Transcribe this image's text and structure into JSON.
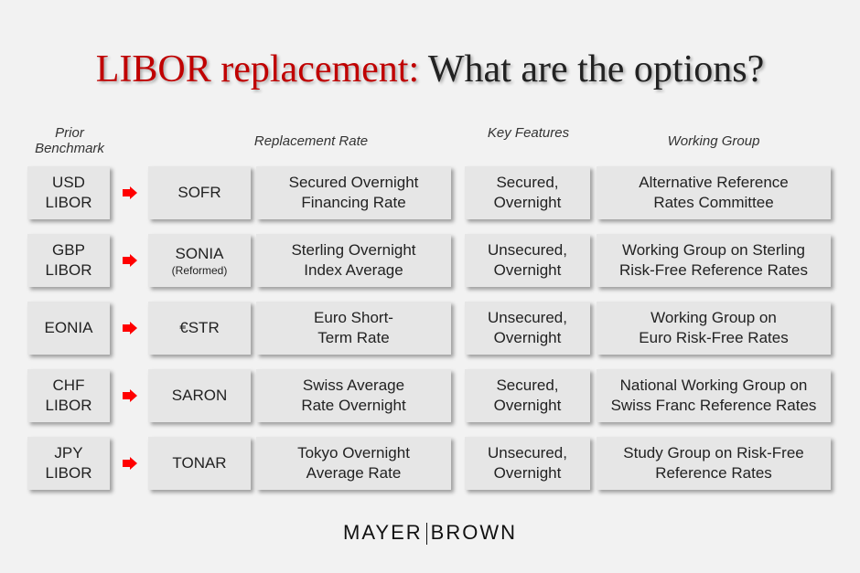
{
  "title": {
    "part1": "LIBOR replacement:",
    "part2": " What are the options?"
  },
  "headers": {
    "prior": "Prior Benchmark",
    "replacement": "Replacement Rate",
    "features": "Key Features",
    "group": "Working Group"
  },
  "rows": [
    {
      "prior": [
        "USD",
        "LIBOR"
      ],
      "code": "SOFR",
      "code_note": "",
      "name": [
        "Secured Overnight",
        "Financing Rate"
      ],
      "features": [
        "Secured,",
        "Overnight"
      ],
      "group": [
        "Alternative Reference",
        "Rates Committee"
      ]
    },
    {
      "prior": [
        "GBP",
        "LIBOR"
      ],
      "code": "SONIA",
      "code_note": "(Reformed)",
      "name": [
        "Sterling Overnight",
        "Index Average"
      ],
      "features": [
        "Unsecured,",
        "Overnight"
      ],
      "group": [
        "Working Group on Sterling",
        "Risk-Free Reference Rates"
      ]
    },
    {
      "prior": [
        "EONIA",
        ""
      ],
      "code": "€STR",
      "code_note": "",
      "name": [
        "Euro Short-",
        "Term Rate"
      ],
      "features": [
        "Unsecured,",
        "Overnight"
      ],
      "group": [
        "Working Group on",
        "Euro Risk-Free Rates"
      ]
    },
    {
      "prior": [
        "CHF",
        "LIBOR"
      ],
      "code": "SARON",
      "code_note": "",
      "name": [
        "Swiss Average",
        "Rate Overnight"
      ],
      "features": [
        "Secured,",
        "Overnight"
      ],
      "group": [
        "National Working Group on",
        "Swiss Franc Reference Rates"
      ]
    },
    {
      "prior": [
        "JPY",
        "LIBOR"
      ],
      "code": "TONAR",
      "code_note": "",
      "name": [
        "Tokyo Overnight",
        "Average Rate"
      ],
      "features": [
        "Unsecured,",
        "Overnight"
      ],
      "group": [
        "Study Group on Risk-Free",
        "Reference Rates"
      ]
    }
  ],
  "logo": {
    "left": "MAYER",
    "right": "BROWN"
  },
  "colors": {
    "accent": "#c00000",
    "arrow": "#ff0000",
    "cell": "#e6e6e6"
  },
  "icons": {
    "arrow": "right-arrow-icon"
  }
}
